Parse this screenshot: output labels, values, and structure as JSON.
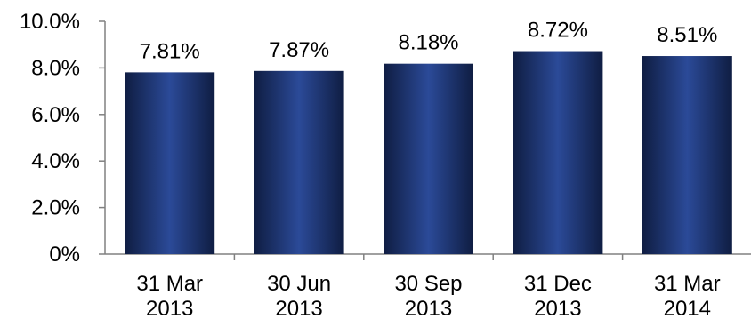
{
  "chart_data": {
    "type": "bar",
    "title": "",
    "xlabel": "",
    "ylabel": "",
    "categories": [
      [
        "31 Mar",
        "2013"
      ],
      [
        "30 Jun",
        "2013"
      ],
      [
        "30 Sep",
        "2013"
      ],
      [
        "31 Dec",
        "2013"
      ],
      [
        "31 Mar",
        "2014"
      ]
    ],
    "values": [
      7.81,
      7.87,
      8.18,
      8.72,
      8.51
    ],
    "data_labels": [
      "7.81%",
      "7.87%",
      "8.18%",
      "8.72%",
      "8.51%"
    ],
    "ylim": [
      0,
      10
    ],
    "yticks": [
      {
        "value": 0,
        "label": "0%"
      },
      {
        "value": 2,
        "label": "2.0%"
      },
      {
        "value": 4,
        "label": "4.0%"
      },
      {
        "value": 6,
        "label": "6.0%"
      },
      {
        "value": 8,
        "label": "8.0%"
      },
      {
        "value": 10,
        "label": "10.0%"
      }
    ],
    "grid": false,
    "legend": "none",
    "colors": {
      "bar_edge": "#0f1d42",
      "bar_mid": "#2b4a98",
      "axis": "#808080",
      "text": "#000000"
    }
  }
}
